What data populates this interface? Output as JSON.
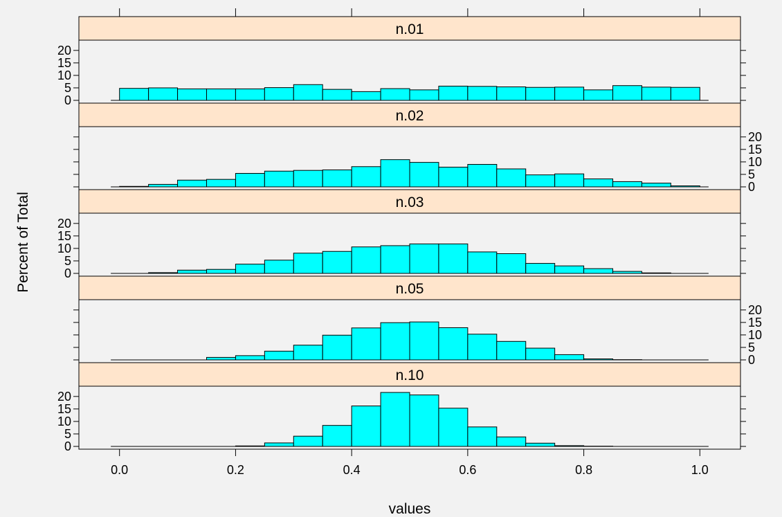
{
  "chart_data": {
    "type": "bar",
    "layout": "lattice histogram, 5 panels stacked vertically",
    "xlabel": "values",
    "ylabel": "Percent of Total",
    "xlim": [
      -0.07,
      1.07
    ],
    "ylim": [
      0,
      23
    ],
    "x_ticks": [
      0.0,
      0.2,
      0.4,
      0.6,
      0.8,
      1.0
    ],
    "x_tick_labels": [
      "0.0",
      "0.2",
      "0.4",
      "0.6",
      "0.8",
      "1.0"
    ],
    "y_ticks": [
      0,
      5,
      10,
      15,
      20
    ],
    "y_tick_labels": [
      "0",
      "5",
      "10",
      "15",
      "20"
    ],
    "bin_width": 0.05,
    "bin_starts": [
      0.0,
      0.05,
      0.1,
      0.15,
      0.2,
      0.25,
      0.3,
      0.35,
      0.4,
      0.45,
      0.5,
      0.55,
      0.6,
      0.65,
      0.7,
      0.75,
      0.8,
      0.85,
      0.9,
      0.95
    ],
    "colors": {
      "bar_fill": "#00ffff",
      "strip_fill": "#ffe5cc",
      "background": "#f2f2f2"
    },
    "panels": [
      {
        "label": "n.01",
        "y_axis_side": "left",
        "values": [
          4.8,
          5.0,
          4.6,
          4.6,
          4.6,
          5.1,
          6.3,
          4.4,
          3.5,
          4.7,
          4.2,
          5.7,
          5.6,
          5.4,
          5.2,
          5.3,
          4.2,
          5.9,
          5.3,
          5.2
        ]
      },
      {
        "label": "n.02",
        "y_axis_side": "right",
        "values": [
          0.2,
          1.0,
          2.7,
          3.0,
          5.4,
          6.3,
          6.6,
          6.8,
          8.1,
          10.9,
          9.8,
          7.9,
          9.0,
          7.2,
          4.8,
          5.2,
          3.2,
          2.1,
          1.5,
          0.4
        ]
      },
      {
        "label": "n.03",
        "y_axis_side": "left",
        "values": [
          0.0,
          0.3,
          1.3,
          1.6,
          3.7,
          5.3,
          8.1,
          8.8,
          10.6,
          11.1,
          11.8,
          11.8,
          8.6,
          7.9,
          4.0,
          3.0,
          1.9,
          0.8,
          0.2,
          0.0
        ]
      },
      {
        "label": "n.05",
        "y_axis_side": "right",
        "values": [
          0.0,
          0.0,
          0.0,
          1.0,
          1.7,
          3.5,
          5.9,
          9.9,
          12.8,
          14.9,
          15.2,
          12.9,
          10.3,
          7.4,
          4.7,
          2.1,
          0.4,
          0.1,
          0.0,
          0.0
        ]
      },
      {
        "label": "n.10",
        "y_axis_side": "left",
        "values": [
          0.0,
          0.0,
          0.0,
          0.0,
          0.2,
          1.4,
          4.1,
          8.4,
          16.2,
          21.6,
          20.6,
          15.3,
          7.8,
          3.8,
          1.3,
          0.3,
          0.1,
          0.0,
          0.0,
          0.0
        ]
      }
    ]
  }
}
